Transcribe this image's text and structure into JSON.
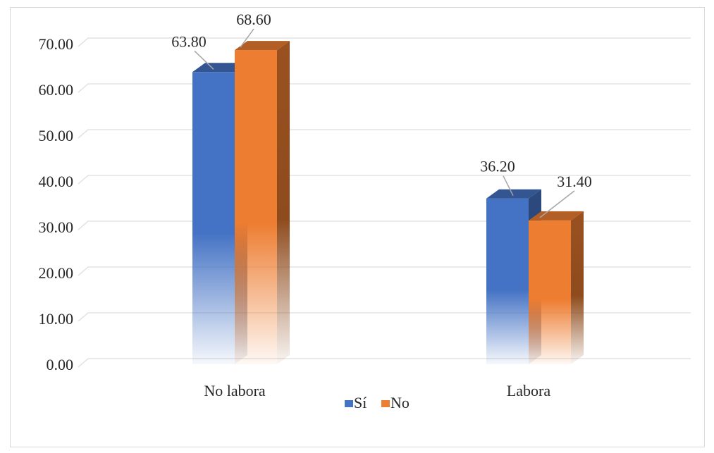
{
  "chart_data": {
    "type": "bar",
    "categories": [
      "No labora",
      "Labora"
    ],
    "series": [
      {
        "name": "Sí",
        "values": [
          63.8,
          36.2
        ],
        "color": "#4472C4"
      },
      {
        "name": "No",
        "values": [
          68.6,
          31.4
        ],
        "color": "#ED7D31"
      }
    ],
    "ylim": [
      0,
      70
    ],
    "yticks": [
      "0.00",
      "10.00",
      "20.00",
      "30.00",
      "40.00",
      "50.00",
      "60.00",
      "70.00"
    ],
    "data_labels": [
      [
        "63.80",
        "36.20"
      ],
      [
        "68.60",
        "31.40"
      ]
    ],
    "grid": true,
    "legend_position": "bottom",
    "style": "3d-gradient-column"
  }
}
